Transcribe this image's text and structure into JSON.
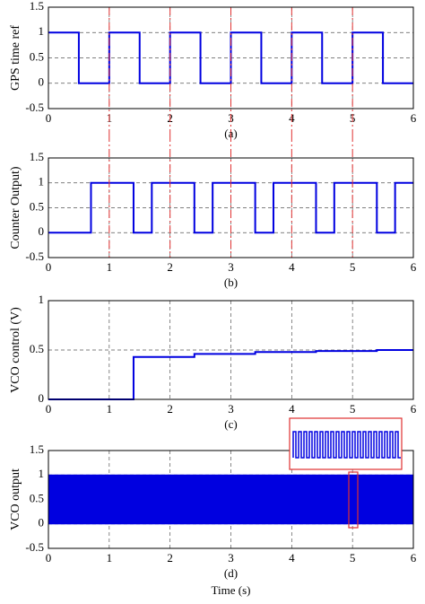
{
  "chart_data": [
    {
      "type": "line",
      "ylabel": "GPS time ref",
      "caption": "(a)",
      "color": "#0000e0",
      "x": [
        0,
        0.5,
        0.5,
        1,
        1,
        1.5,
        1.5,
        2,
        2,
        2.5,
        2.5,
        3,
        3,
        3.5,
        3.5,
        4,
        4,
        4.5,
        4.5,
        5,
        5,
        5.5,
        5.5,
        6
      ],
      "values": [
        1,
        1,
        0,
        0,
        1,
        1,
        0,
        0,
        1,
        1,
        0,
        0,
        1,
        1,
        0,
        0,
        1,
        1,
        0,
        0,
        1,
        1,
        0,
        0
      ],
      "xlim": [
        0,
        6
      ],
      "ylim": [
        -0.5,
        1.5
      ],
      "xticks": [
        0,
        1,
        2,
        3,
        4,
        5,
        6
      ],
      "yticks": [
        -0.5,
        0,
        0.5,
        1,
        1.5
      ],
      "grid": true,
      "vlines": [
        1,
        2,
        3,
        4,
        5
      ],
      "vline_color": "#e03030"
    },
    {
      "type": "line",
      "ylabel": "Counter Output)",
      "caption": "(b)",
      "color": "#0000e0",
      "x": [
        0,
        0.7,
        0.7,
        1.4,
        1.4,
        1.7,
        1.7,
        2.4,
        2.4,
        2.7,
        2.7,
        3.4,
        3.4,
        3.7,
        3.7,
        4.4,
        4.4,
        4.7,
        4.7,
        5.4,
        5.4,
        5.7,
        5.7,
        6
      ],
      "values": [
        0,
        0,
        1,
        1,
        0,
        0,
        1,
        1,
        0,
        0,
        1,
        1,
        0,
        0,
        1,
        1,
        0,
        0,
        1,
        1,
        0,
        0,
        1,
        1
      ],
      "xlim": [
        0,
        6
      ],
      "ylim": [
        -0.5,
        1.5
      ],
      "xticks": [
        0,
        1,
        2,
        3,
        4,
        5,
        6
      ],
      "yticks": [
        -0.5,
        0,
        0.5,
        1,
        1.5
      ],
      "grid": true,
      "vlines": [
        1,
        2,
        3,
        4,
        5
      ],
      "vline_color": "#e03030"
    },
    {
      "type": "line",
      "ylabel": "VCO control (V)",
      "caption": "(c)",
      "color": "#0000e0",
      "x": [
        0,
        1.4,
        1.4,
        2.4,
        2.4,
        3.4,
        3.4,
        4.4,
        4.4,
        5.4,
        5.4,
        6
      ],
      "values": [
        0,
        0,
        0.43,
        0.43,
        0.46,
        0.46,
        0.48,
        0.48,
        0.49,
        0.49,
        0.5,
        0.5
      ],
      "xlim": [
        0,
        6
      ],
      "ylim": [
        0,
        1
      ],
      "xticks": [
        0,
        1,
        2,
        3,
        4,
        5,
        6
      ],
      "yticks": [
        0,
        0.5,
        1
      ],
      "grid": true
    },
    {
      "type": "band",
      "ylabel": "VCO output",
      "caption": "(d)",
      "xlabel": "Time (s)",
      "color": "#0000e0",
      "x": [
        0,
        6
      ],
      "values": [
        1,
        1
      ],
      "lower": [
        0,
        0
      ],
      "xlim": [
        0,
        6
      ],
      "ylim": [
        -0.5,
        1.5
      ],
      "xticks": [
        0,
        1,
        2,
        3,
        4,
        5,
        6
      ],
      "yticks": [
        -0.5,
        0,
        0.5,
        1,
        1.5
      ],
      "grid": true
    }
  ]
}
